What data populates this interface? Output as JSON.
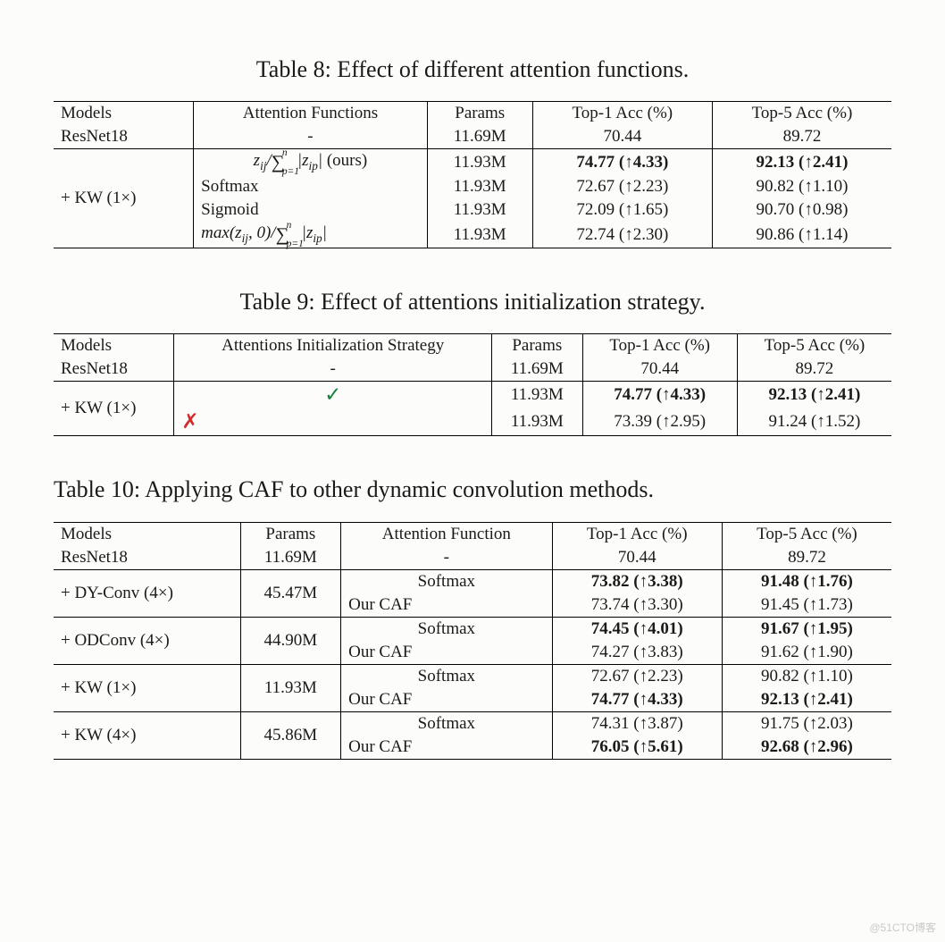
{
  "table8": {
    "caption": "Table 8: Effect of different attention functions.",
    "headers": [
      "Models",
      "Attention Functions",
      "Params",
      "Top-1 Acc (%)",
      "Top-5 Acc (%)"
    ],
    "baseline": {
      "model": "ResNet18",
      "func": "-",
      "params": "11.69M",
      "top1": "70.44",
      "top5": "89.72"
    },
    "group_label": "+ KW (1×)",
    "rows": [
      {
        "func_html": "z<sub>ij</sub>/<span class='sumspan'>∑<span class='sub'>p=1</span><span class='sup'>n</span></span>&nbsp;&nbsp;&nbsp;|z<sub>ip</sub>| <span style='font-style:normal'>(ours)</span>",
        "params": "11.93M",
        "top1": "74.77 (↑4.33)",
        "top5": "92.13 (↑2.41)",
        "bold": true
      },
      {
        "func_html": "<span style='font-style:normal'>Softmax</span>",
        "params": "11.93M",
        "top1": "72.67 (↑2.23)",
        "top5": "90.82 (↑1.10)",
        "bold": false
      },
      {
        "func_html": "<span style='font-style:normal'>Sigmoid</span>",
        "params": "11.93M",
        "top1": "72.09 (↑1.65)",
        "top5": "90.70 (↑0.98)",
        "bold": false
      },
      {
        "func_html": "max(z<sub>ij</sub>, 0)/<span class='sumspan'>∑<span class='sub'>p=1</span><span class='sup'>n</span></span>&nbsp;&nbsp;&nbsp;|z<sub>ip</sub>|",
        "params": "11.93M",
        "top1": "72.74 (↑2.30)",
        "top5": "90.86 (↑1.14)",
        "bold": false
      }
    ]
  },
  "table9": {
    "caption": "Table 9: Effect of attentions initialization strategy.",
    "headers": [
      "Models",
      "Attentions Initialization Strategy",
      "Params",
      "Top-1 Acc (%)",
      "Top-5 Acc (%)"
    ],
    "baseline": {
      "model": "ResNet18",
      "func": "-",
      "params": "11.69M",
      "top1": "70.44",
      "top5": "89.72"
    },
    "group_label": "+ KW (1×)",
    "rows": [
      {
        "func_html": "<span style='color:#16813a;font-style:normal;font-size:1.2em;'>✓</span>",
        "params": "11.93M",
        "top1": "74.77 (↑4.33)",
        "top5": "92.13 (↑2.41)",
        "bold": true
      },
      {
        "func_html": "<span style='color:#d12c2c;font-style:normal;font-size:1.2em;'>✗</span>",
        "params": "11.93M",
        "top1": "73.39 (↑2.95)",
        "top5": "91.24 (↑1.52)",
        "bold": false
      }
    ]
  },
  "table10": {
    "caption": "Table 10: Applying CAF to other dynamic convolution methods.",
    "headers": [
      "Models",
      "Params",
      "Attention Function",
      "Top-1 Acc (%)",
      "Top-5 Acc (%)"
    ],
    "baseline": {
      "model": "ResNet18",
      "params": "11.69M",
      "func": "-",
      "top1": "70.44",
      "top5": "89.72"
    },
    "groups": [
      {
        "label": "+ DY-Conv (4×)",
        "params": "45.47M",
        "rows": [
          {
            "func": "Softmax",
            "top1": "73.82 (↑3.38)",
            "top5": "91.48 (↑1.76)",
            "bold": true
          },
          {
            "func": "Our CAF",
            "top1": "73.74 (↑3.30)",
            "top5": "91.45 (↑1.73)",
            "bold": false
          }
        ]
      },
      {
        "label": "+ ODConv (4×)",
        "params": "44.90M",
        "rows": [
          {
            "func": "Softmax",
            "top1": "74.45 (↑4.01)",
            "top5": "91.67 (↑1.95)",
            "bold": true
          },
          {
            "func": "Our CAF",
            "top1": "74.27 (↑3.83)",
            "top5": "91.62 (↑1.90)",
            "bold": false
          }
        ]
      },
      {
        "label": "+ KW (1×)",
        "params": "11.93M",
        "rows": [
          {
            "func": "Softmax",
            "top1": "72.67 (↑2.23)",
            "top5": "90.82 (↑1.10)",
            "bold": false
          },
          {
            "func": "Our CAF",
            "top1": "74.77 (↑4.33)",
            "top5": "92.13 (↑2.41)",
            "bold": true
          }
        ]
      },
      {
        "label": "+ KW (4×)",
        "params": "45.86M",
        "rows": [
          {
            "func": "Softmax",
            "top1": "74.31 (↑3.87)",
            "top5": "91.75 (↑2.03)",
            "bold": false
          },
          {
            "func": "Our CAF",
            "top1": "76.05 (↑5.61)",
            "top5": "92.68 (↑2.96)",
            "bold": true
          }
        ]
      }
    ]
  },
  "watermark": "@51CTO博客",
  "colors": {
    "text": "#1a1a1a",
    "background": "#fcfcfa",
    "rule": "#000000",
    "check": "#16813a",
    "cross": "#d12c2c",
    "watermark": "#c9c9c9"
  },
  "fonts": {
    "body_family": "Times New Roman",
    "caption_pt": 26,
    "cell_pt": 19
  }
}
